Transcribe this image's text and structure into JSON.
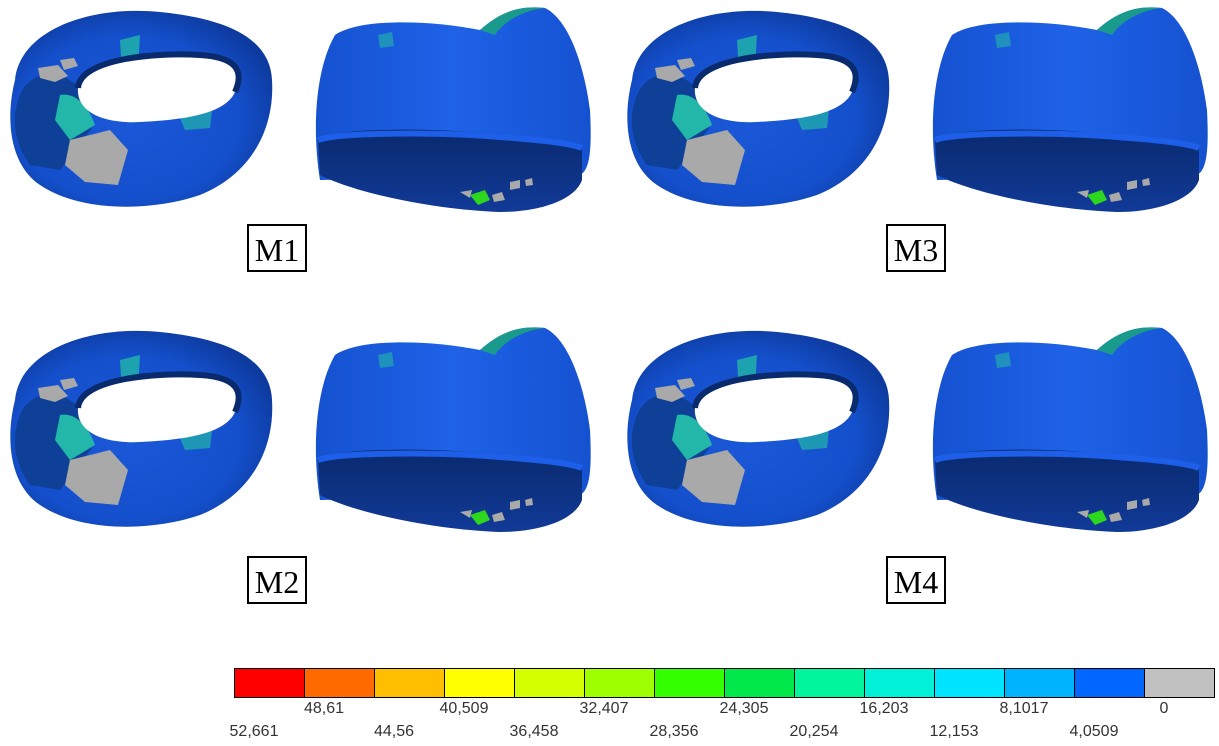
{
  "models": [
    {
      "id": "m1",
      "label": "M1"
    },
    {
      "id": "m2",
      "label": "M2"
    },
    {
      "id": "m3",
      "label": "M3"
    },
    {
      "id": "m4",
      "label": "M4"
    }
  ],
  "legend": {
    "colors": [
      "#ff0000",
      "#ff6a00",
      "#ffbf00",
      "#ffff00",
      "#d4ff00",
      "#9dff00",
      "#33ff00",
      "#00e84a",
      "#00f59c",
      "#00f0d8",
      "#00e5ff",
      "#00b3ff",
      "#0066ff",
      "#c0c0c0"
    ],
    "upper_ticks": [
      "48,61",
      "40,509",
      "32,407",
      "24,305",
      "16,203",
      "8,1017",
      "0"
    ],
    "lower_ticks": [
      "52,661",
      "44,56",
      "36,458",
      "28,356",
      "20,254",
      "12,153",
      "4,0509"
    ]
  },
  "colors": {
    "surface_blue": "#1a5fe0",
    "surface_dark": "#0a2a6e",
    "low_stress_grey": "#a9a9a9",
    "teal_patch": "#22b7a8"
  }
}
